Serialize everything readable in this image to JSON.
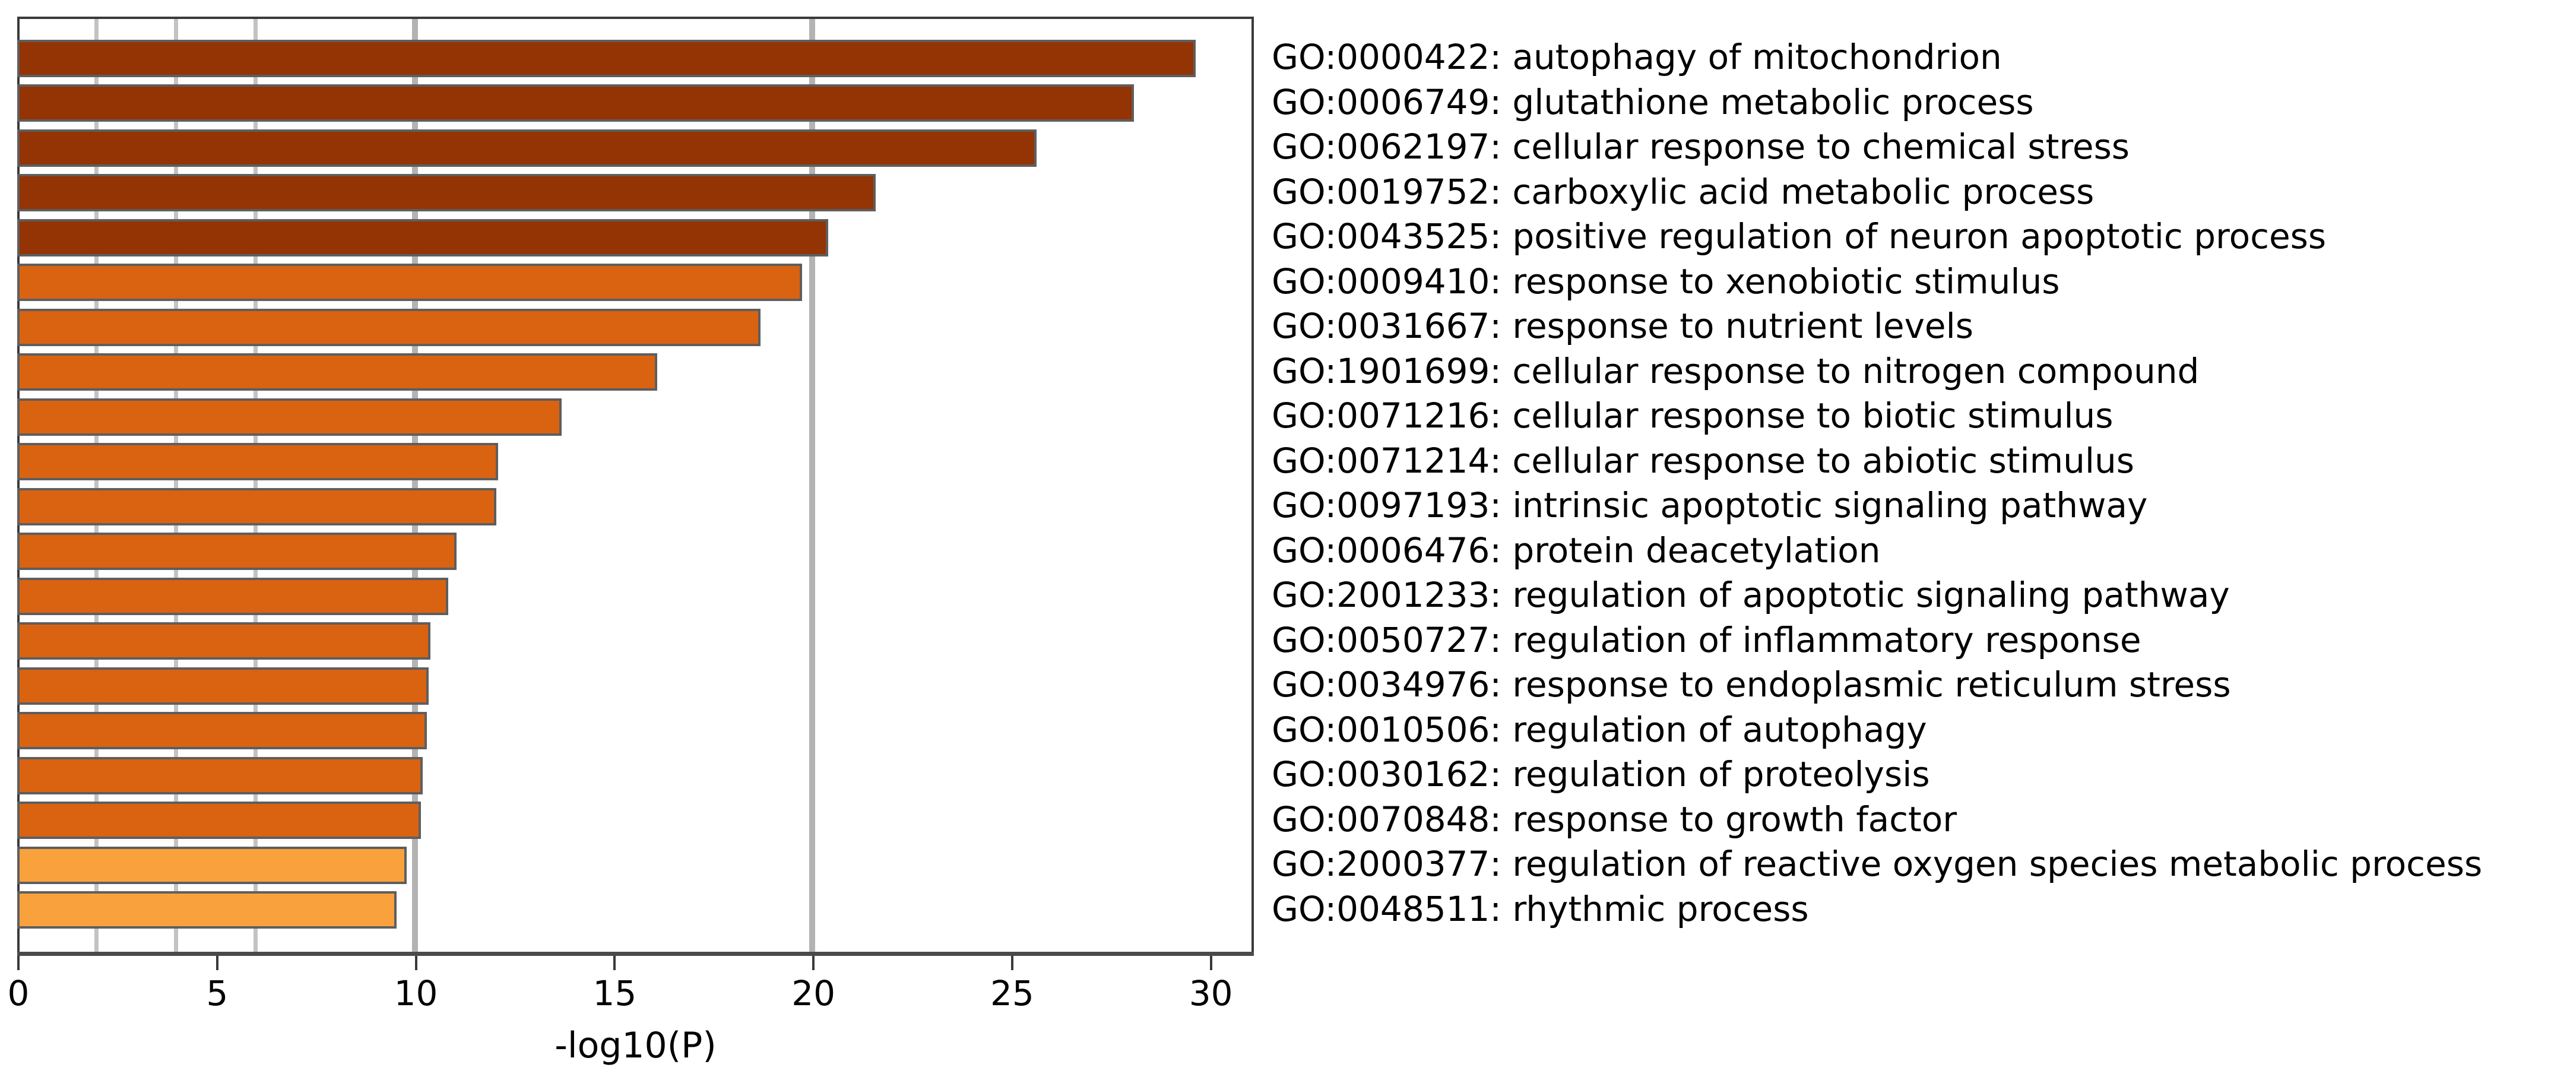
{
  "chart_data": {
    "type": "bar",
    "orientation": "horizontal",
    "title": "",
    "xlabel": "-log10(P)",
    "ylabel": "",
    "xlim": [
      0,
      31.05
    ],
    "x_ticks": [
      0,
      5,
      10,
      15,
      20,
      25,
      30
    ],
    "gridlines": {
      "minor": [
        2,
        4,
        6
      ],
      "major": [
        10,
        20
      ]
    },
    "grid": true,
    "legend_position": "none",
    "categories": [
      "GO:0000422: autophagy of mitochondrion",
      "GO:0006749: glutathione metabolic process",
      "GO:0062197: cellular response to chemical stress",
      "GO:0019752: carboxylic acid metabolic process",
      "GO:0043525: positive regulation of neuron apoptotic process",
      "GO:0009410: response to xenobiotic stimulus",
      "GO:0031667: response to nutrient levels",
      "GO:1901699: cellular response to nitrogen compound",
      "GO:0071216: cellular response to biotic stimulus",
      "GO:0071214: cellular response to abiotic stimulus",
      "GO:0097193: intrinsic apoptotic signaling pathway",
      "GO:0006476: protein deacetylation",
      "GO:2001233: regulation of apoptotic signaling pathway",
      "GO:0050727: regulation of inflammatory response",
      "GO:0034976: response to endoplasmic reticulum stress",
      "GO:0010506: regulation of autophagy",
      "GO:0030162: regulation of proteolysis",
      "GO:0070848: response to growth factor",
      "GO:2000377: regulation of reactive oxygen species metabolic process",
      "GO:0048511: rhythmic process"
    ],
    "values": [
      29.65,
      28.1,
      25.65,
      21.6,
      20.4,
      19.75,
      18.7,
      16.1,
      13.7,
      12.1,
      12.05,
      11.05,
      10.85,
      10.4,
      10.35,
      10.3,
      10.2,
      10.15,
      9.8,
      9.55
    ],
    "bar_colors": [
      "#943405",
      "#943405",
      "#943405",
      "#943405",
      "#943405",
      "#DA6312",
      "#DA6312",
      "#DA6312",
      "#DA6312",
      "#DA6312",
      "#DA6312",
      "#DA6312",
      "#DA6312",
      "#DA6312",
      "#DA6312",
      "#DA6312",
      "#DA6312",
      "#DA6312",
      "#F9A13C",
      "#F9A13C"
    ],
    "palette": {
      "dark_orange": "#943405",
      "medium_orange": "#DA6312",
      "light_orange": "#F9A13C",
      "bar_border": "#5E5E5E",
      "gridline_minor": "#C3C3C3",
      "gridline_major": "#B3B3B3",
      "axis": "#3A3A3A"
    }
  }
}
